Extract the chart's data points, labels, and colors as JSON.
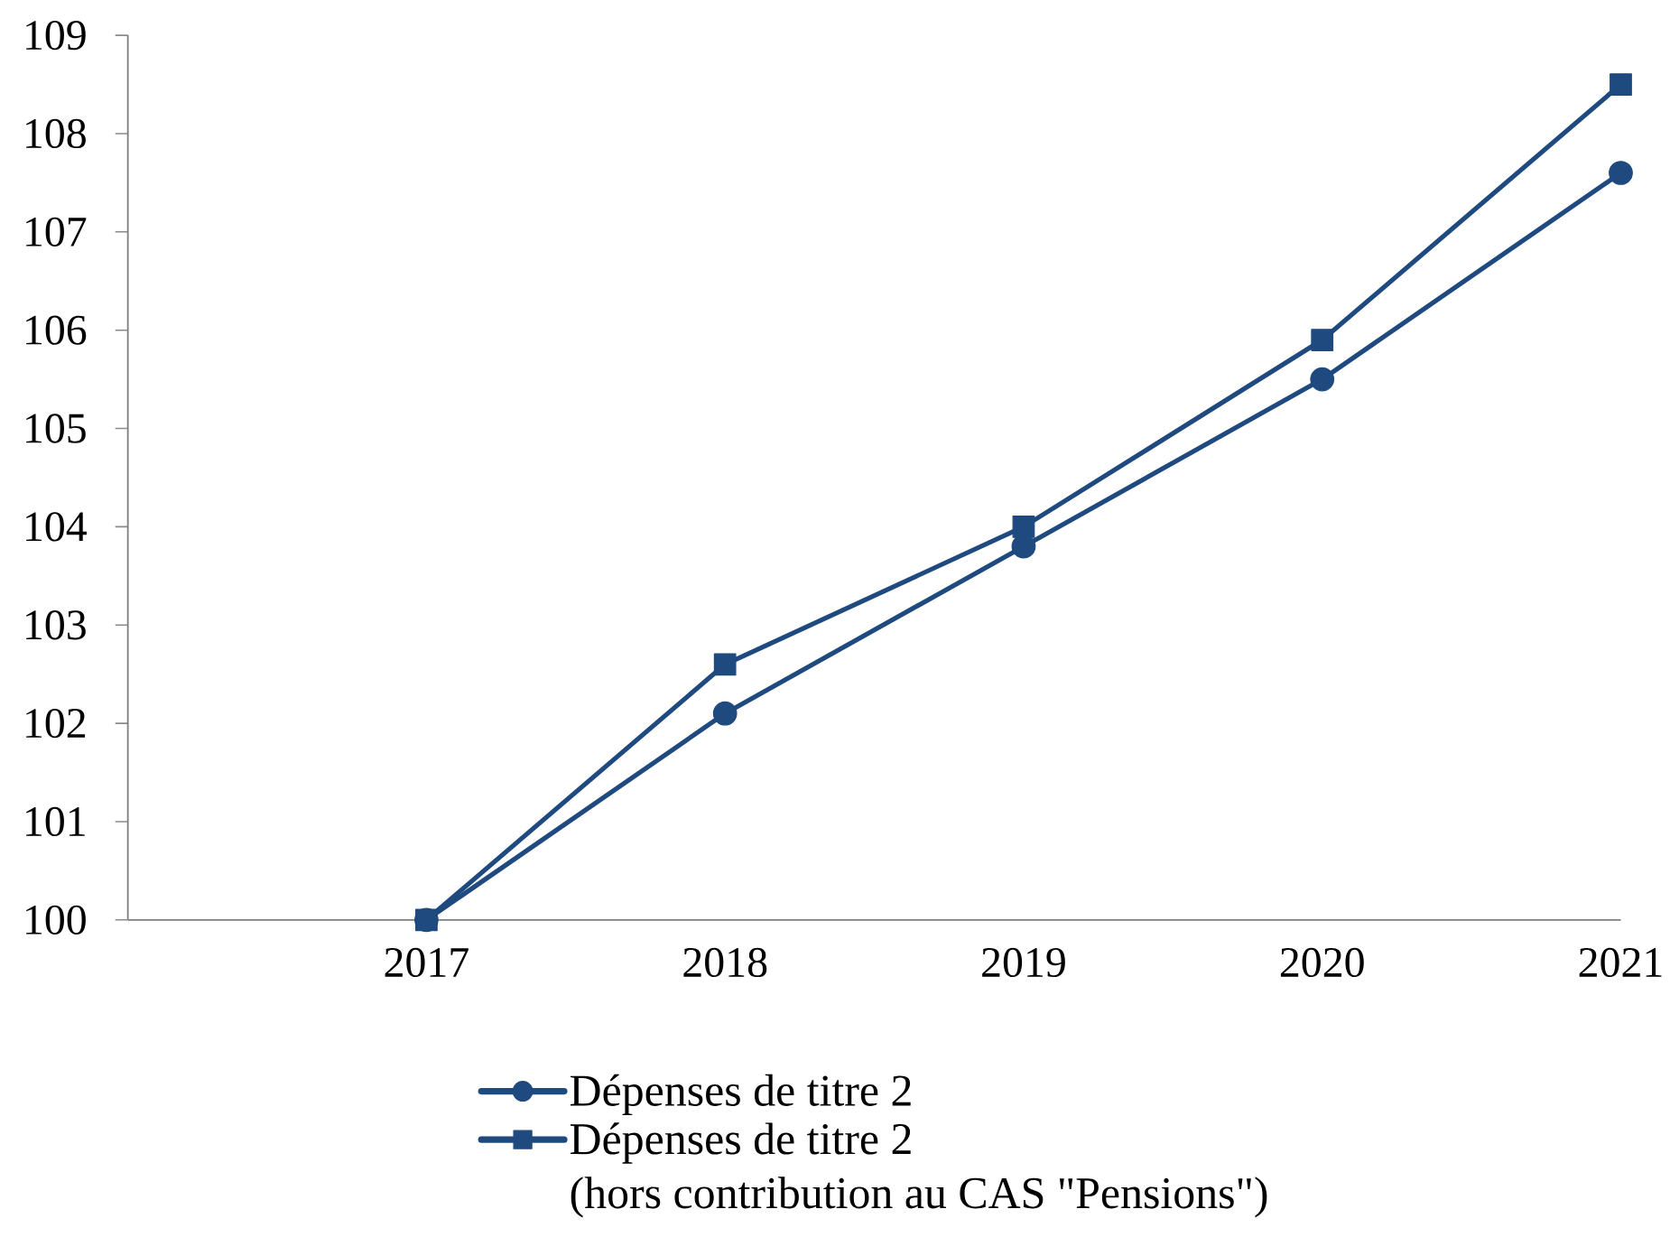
{
  "chart_data": {
    "type": "line",
    "x": [
      2017,
      2018,
      2019,
      2020,
      2021
    ],
    "series": [
      {
        "name": "Dépenses de titre 2",
        "color": "#1f4a7f",
        "marker": "circle",
        "values": [
          100,
          102.1,
          103.8,
          105.5,
          107.6
        ]
      },
      {
        "name": "Dépenses de titre 2\n(hors contribution au CAS \"Pensions\")",
        "color": "#1f4a7f",
        "marker": "square",
        "values": [
          100,
          102.6,
          104.0,
          105.9,
          108.5
        ]
      }
    ],
    "xlim": [
      2016,
      2021
    ],
    "xticks": [
      2017,
      2018,
      2019,
      2020,
      2021
    ],
    "ylim": [
      100,
      109
    ],
    "yticks": [
      100,
      101,
      102,
      103,
      104,
      105,
      106,
      107,
      108,
      109
    ],
    "legend": "bottom"
  }
}
